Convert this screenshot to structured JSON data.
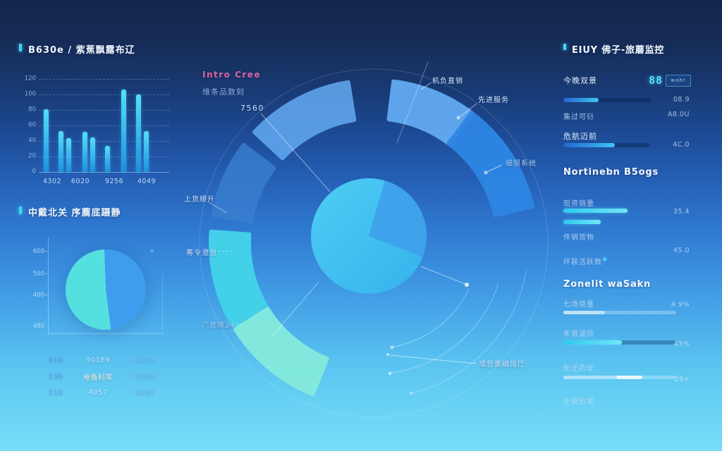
{
  "left": {
    "bar_section": {
      "title": "B630e / 紫蕉飘露布辽"
    },
    "pie_section": {
      "title": "中戴北关 序薦底蹑静",
      "corner_mark": "+",
      "axis_ticks": [
        "600",
        "500",
        "400",
        "480"
      ],
      "table": {
        "rows": [
          [
            "810",
            "90189",
            "6223"
          ],
          [
            "230",
            "电备料库",
            "5989"
          ],
          [
            "110",
            "4057",
            "6267"
          ]
        ]
      }
    }
  },
  "center": {
    "title": "Intro Cree",
    "subtitle": "维条品数刻",
    "callouts": {
      "value_label": "7560",
      "left_1": "上货顺升",
      "left_2": "莠令澄包",
      "left_3": "广管理24",
      "top_right_1": "机负直销",
      "top_right_2": "先进服务",
      "right_1": "细银系统",
      "bottom_right": "增营重磁馆厅"
    }
  },
  "right": {
    "section1": {
      "title": "EIUY 佛子-旅蘑监控",
      "row1_label": "今晚双景",
      "badge_digits": "88",
      "badge_text": "wahr",
      "bar1_value": "08.9",
      "row2_label": "集过可衍",
      "row2_value": "A8.0U",
      "row3_label": "危航迈前",
      "bar2_value": "4C.0"
    },
    "section2": {
      "title": "Nortinebn B5ogs",
      "row1_label": "现资销量",
      "row1_value": "35.4",
      "row2_label": "件销货物",
      "row2_value": "45.0",
      "row3_label": "环联活跃数"
    },
    "section3": {
      "title": "Zonelit waSakn",
      "row1_label": "七场简量",
      "row1_value": "4 9%",
      "row2_label": "年首温险",
      "row2_value": "43%",
      "row3_label": "轮迂药优",
      "row3_value": "29+",
      "row4_label": "企良日常"
    }
  },
  "chart_data": [
    {
      "type": "bar",
      "title": "B630e / 紫蕉飘露布辽",
      "categories": [
        "4302",
        "6020",
        "9256",
        "4049"
      ],
      "cat_x": [
        0.103,
        0.319,
        0.578,
        0.827
      ],
      "values": [
        81,
        53,
        44,
        52,
        45,
        34,
        106,
        100,
        53
      ],
      "bar_x": [
        0.038,
        0.151,
        0.211,
        0.335,
        0.395,
        0.508,
        0.632,
        0.746,
        0.805
      ],
      "yticks": [
        "120",
        "100",
        "80",
        "60",
        "40",
        "20",
        "0"
      ],
      "ylim": [
        0,
        120
      ],
      "grid": true,
      "bar_color_top": "#55e0f7",
      "bar_color_bottom": "#1e8fdc"
    },
    {
      "type": "pie",
      "title": "中戴北关 序薦底蹑静",
      "start_angle_deg": -2,
      "slices": [
        {
          "label": "right-half",
          "value": 48.5,
          "color": "#3f9df0"
        },
        {
          "label": "left-half",
          "value": 51.5,
          "color": "#55e0e0"
        }
      ]
    },
    {
      "type": "donut",
      "center_pie": {
        "color": "#3fc0ef",
        "wedge_color": "#3f9eeb",
        "wedge_start_deg": 16,
        "wedge_end_deg": 111
      },
      "ring": {
        "inner_r": 174,
        "outer_r": 234,
        "segments": [
          {
            "start": 7,
            "end": 37,
            "color": "#62aaf2",
            "opacity": 0.95
          },
          {
            "start": 37,
            "end": 77,
            "color": "#2e86e4",
            "opacity": 0.95
          },
          {
            "start": -47,
            "end": -9,
            "color": "#62aaf2",
            "opacity": 0.85
          },
          {
            "start": -80,
            "end": -53,
            "color": "#3a7fd0",
            "opacity": 0.8
          },
          {
            "start": -122,
            "end": -86,
            "color": "#43d4e9",
            "opacity": 0.95
          },
          {
            "start": -158,
            "end": -122,
            "color": "#85ebdd",
            "opacity": 0.95
          }
        ]
      }
    },
    {
      "type": "progress",
      "bars": [
        {
          "name": "s1-top",
          "pct": 40
        },
        {
          "name": "s1-bottom",
          "pct": 59
        },
        {
          "name": "s2-cyan-a",
          "pct": 73
        },
        {
          "name": "s2-cyan-b",
          "pct": 42
        },
        {
          "name": "s3-a",
          "pct": 37
        },
        {
          "name": "s3-b",
          "pct": 52
        },
        {
          "name": "s3-c-dim",
          "pct": 47
        },
        {
          "name": "s3-c-bright",
          "left": 47,
          "pct": 23
        }
      ]
    }
  ]
}
